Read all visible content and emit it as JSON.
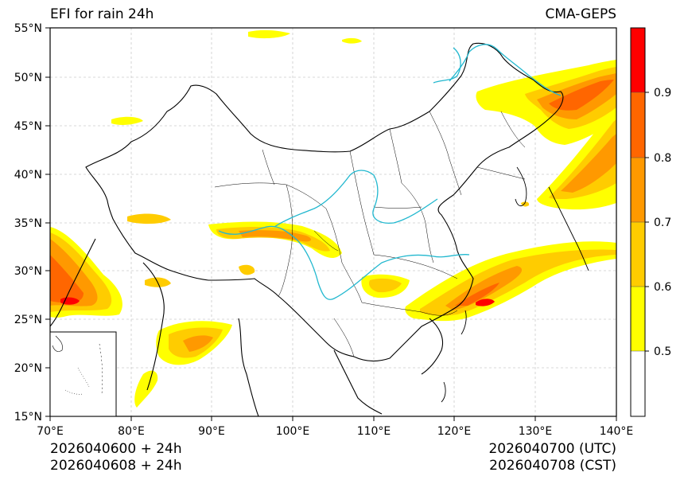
{
  "header": {
    "title": "EFI for rain 24h",
    "model": "CMA-GEPS"
  },
  "footer": {
    "left_line1": "2026040600 + 24h",
    "left_line2": "2026040608 + 24h",
    "right_line1": "2026040700 (UTC)",
    "right_line2": "2026040708 (CST)"
  },
  "axes": {
    "lon_labels": [
      "70°E",
      "80°E",
      "90°E",
      "100°E",
      "110°E",
      "120°E",
      "130°E",
      "140°E"
    ],
    "lat_labels": [
      "15°N",
      "20°N",
      "25°N",
      "30°N",
      "35°N",
      "40°N",
      "45°N",
      "50°N",
      "55°N"
    ]
  },
  "colorbar": {
    "labels": [
      "0.5",
      "0.6",
      "0.7",
      "0.8",
      "0.9"
    ],
    "colors": [
      "#ffffff",
      "#ffff00",
      "#ffcc00",
      "#ff9900",
      "#ff6600",
      "#ff0000"
    ]
  },
  "colors": {
    "river": "#22b8cf",
    "grid": "#cccccc",
    "border": "#000000"
  }
}
